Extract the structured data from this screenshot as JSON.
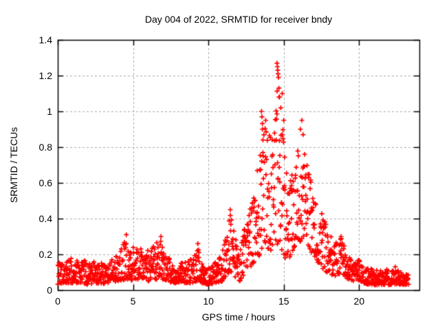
{
  "figure": {
    "title": "Day 004 of 2022, SRMTID for receiver bndy",
    "background_color": "#ffffff",
    "frame_color": "#000000"
  },
  "chart_data": {
    "type": "scatter",
    "title": "Day 004 of 2022, SRMTID for receiver bndy",
    "xlabel": "GPS time / hours",
    "ylabel": "SRMTID / TECUs",
    "xlim": [
      0,
      24
    ],
    "ylim": [
      0,
      1.4
    ],
    "xticks": {
      "values": [
        0,
        5,
        10,
        15,
        20
      ],
      "labels": [
        "0",
        "5",
        "10",
        "15",
        "20"
      ]
    },
    "yticks": {
      "values": [
        0,
        0.2,
        0.4,
        0.6,
        0.8,
        1.0,
        1.2,
        1.4
      ],
      "labels": [
        "0",
        "0.2",
        "0.4",
        "0.6",
        "0.8",
        "1",
        "1.2",
        "1.4"
      ]
    },
    "grid": {
      "show": true,
      "style": "dashed",
      "color": "#a8a8a8"
    },
    "legend": "none",
    "marker": {
      "shape": "plus",
      "size": 7,
      "stroke": 1.7,
      "color": "#ff0000"
    },
    "series": [
      {
        "name": "SRMTID",
        "x_start": 0,
        "x_end": 23.3,
        "points_per_hour": 58,
        "envelope": [
          [
            0,
            0.03,
            0.16
          ],
          [
            0.5,
            0.04,
            0.17
          ],
          [
            1,
            0.04,
            0.18
          ],
          [
            1.5,
            0.04,
            0.16
          ],
          [
            2,
            0.03,
            0.17
          ],
          [
            2.5,
            0.04,
            0.16
          ],
          [
            3,
            0.03,
            0.15
          ],
          [
            3.5,
            0.04,
            0.17
          ],
          [
            4,
            0.05,
            0.2
          ],
          [
            4.5,
            0.06,
            0.28
          ],
          [
            4.8,
            0.05,
            0.22
          ],
          [
            5,
            0.06,
            0.24
          ],
          [
            5.5,
            0.06,
            0.26
          ],
          [
            6,
            0.05,
            0.22
          ],
          [
            6.5,
            0.06,
            0.26
          ],
          [
            6.9,
            0.06,
            0.29
          ],
          [
            7.2,
            0.05,
            0.2
          ],
          [
            7.6,
            0.04,
            0.16
          ],
          [
            8,
            0.04,
            0.15
          ],
          [
            8.5,
            0.04,
            0.16
          ],
          [
            9,
            0.04,
            0.18
          ],
          [
            9.3,
            0.05,
            0.24
          ],
          [
            9.7,
            0.03,
            0.14
          ],
          [
            10,
            0.03,
            0.13
          ],
          [
            10.5,
            0.04,
            0.16
          ],
          [
            10.9,
            0.05,
            0.2
          ],
          [
            11.2,
            0.08,
            0.35
          ],
          [
            11.5,
            0.1,
            0.44
          ],
          [
            11.8,
            0.07,
            0.3
          ],
          [
            12.1,
            0.05,
            0.22
          ],
          [
            12.4,
            0.08,
            0.35
          ],
          [
            12.7,
            0.12,
            0.45
          ],
          [
            13,
            0.15,
            0.55
          ],
          [
            13.3,
            0.18,
            0.7
          ],
          [
            13.6,
            0.2,
            0.95
          ],
          [
            13.9,
            0.22,
            0.92
          ],
          [
            14.2,
            0.2,
            0.85
          ],
          [
            14.5,
            0.25,
            1.1
          ],
          [
            14.7,
            0.25,
            1.2
          ],
          [
            14.9,
            0.22,
            1.0
          ],
          [
            15.1,
            0.18,
            0.7
          ],
          [
            15.4,
            0.18,
            0.6
          ],
          [
            15.7,
            0.22,
            0.7
          ],
          [
            16,
            0.25,
            0.85
          ],
          [
            16.3,
            0.28,
            0.8
          ],
          [
            16.6,
            0.25,
            0.7
          ],
          [
            16.9,
            0.2,
            0.58
          ],
          [
            17.2,
            0.16,
            0.5
          ],
          [
            17.6,
            0.12,
            0.42
          ],
          [
            18,
            0.09,
            0.32
          ],
          [
            18.4,
            0.08,
            0.26
          ],
          [
            18.8,
            0.09,
            0.3
          ],
          [
            19.2,
            0.06,
            0.2
          ],
          [
            19.6,
            0.05,
            0.16
          ],
          [
            20,
            0.05,
            0.17
          ],
          [
            20.3,
            0.04,
            0.13
          ],
          [
            20.7,
            0.03,
            0.12
          ],
          [
            21.5,
            0.03,
            0.12
          ],
          [
            22.5,
            0.03,
            0.11
          ],
          [
            23.3,
            0.03,
            0.1
          ]
        ],
        "outliers": [
          [
            4.55,
            0.31
          ],
          [
            6.85,
            0.3
          ],
          [
            9.3,
            0.26
          ],
          [
            11.45,
            0.45
          ],
          [
            13.52,
            1.0
          ],
          [
            13.55,
            0.97
          ],
          [
            13.58,
            0.9
          ],
          [
            13.62,
            0.84
          ],
          [
            13.8,
            0.95
          ],
          [
            14.55,
            1.27
          ],
          [
            14.58,
            1.25
          ],
          [
            14.6,
            1.23
          ],
          [
            14.62,
            1.21
          ],
          [
            14.65,
            1.19
          ],
          [
            14.68,
            1.13
          ],
          [
            14.72,
            1.08
          ],
          [
            14.8,
            1.02
          ],
          [
            14.9,
            1.1
          ],
          [
            15.0,
            0.95
          ],
          [
            16.1,
            0.9
          ],
          [
            16.2,
            0.95
          ],
          [
            16.28,
            0.87
          ],
          [
            18.8,
            0.3
          ],
          [
            22.4,
            0.13
          ]
        ]
      }
    ]
  }
}
